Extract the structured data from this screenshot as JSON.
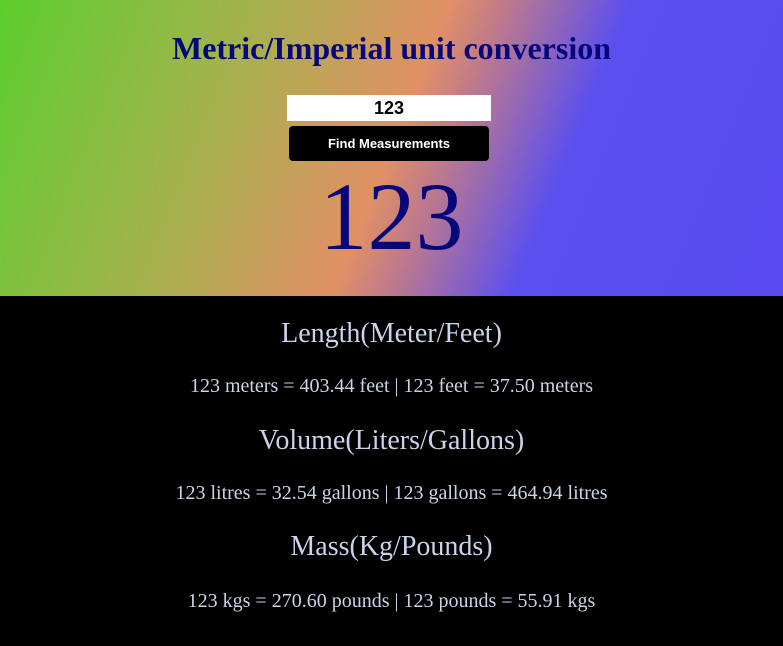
{
  "header": {
    "title": "Metric/Imperial unit conversion",
    "input_value": "123",
    "button_label": "Find Measurements",
    "display_number": "123"
  },
  "sections": {
    "length": {
      "heading": "Length(Meter/Feet)",
      "result": "123 meters = 403.44 feet | 123 feet = 37.50 meters"
    },
    "volume": {
      "heading": "Volume(Liters/Gallons)",
      "result": "123 litres = 32.54 gallons | 123 gallons = 464.94 litres"
    },
    "mass": {
      "heading": "Mass(Kg/Pounds)",
      "result": "123 kgs = 270.60 pounds | 123 pounds = 55.91 kgs"
    }
  },
  "colors": {
    "title_text": "#06087a",
    "result_text": "#c9d3ea",
    "gradient_start": "#5ccf2e",
    "gradient_mid": "#e19065",
    "gradient_end": "#5a4cf0"
  }
}
